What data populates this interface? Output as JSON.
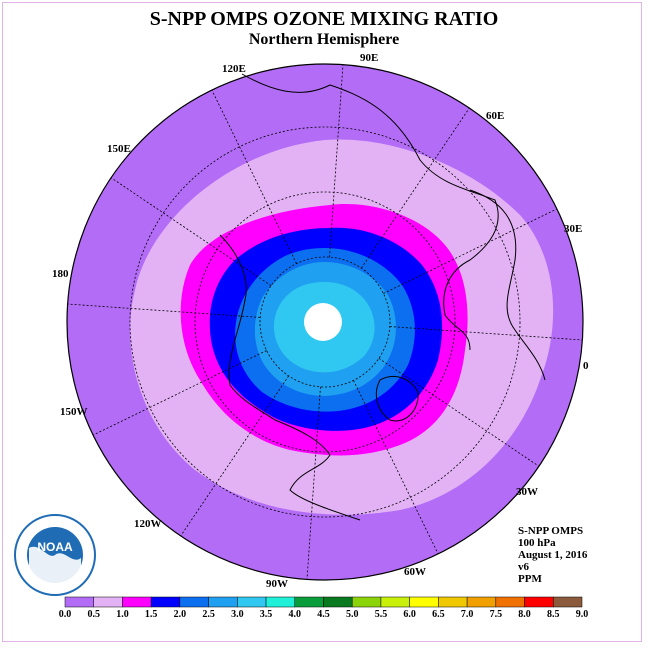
{
  "title": "S-NPP OMPS OZONE MIXING RATIO",
  "subtitle": "Northern Hemisphere",
  "longitude_labels": {
    "lon_90e": "90E",
    "lon_60e": "60E",
    "lon_30e": "30E",
    "lon_0": "0",
    "lon_30w": "30W",
    "lon_60w": "60W",
    "lon_90w": "90W",
    "lon_120w": "120W",
    "lon_150w": "150W",
    "lon_180": "180",
    "lon_150e": "150E",
    "lon_120e": "120E"
  },
  "info": {
    "instrument": "S-NPP OMPS",
    "level": "100 hPa",
    "date": "August 1, 2016",
    "version": "v6",
    "units": "PPM"
  },
  "colorbar": {
    "ticks": [
      "0.0",
      "0.5",
      "1.0",
      "1.5",
      "2.0",
      "2.5",
      "3.0",
      "3.5",
      "4.0",
      "4.5",
      "5.0",
      "5.5",
      "6.0",
      "6.5",
      "7.0",
      "7.5",
      "8.0",
      "8.5",
      "9.0"
    ],
    "colors": [
      "#b36cf5",
      "#e3b2f5",
      "#ff00ff",
      "#0000ff",
      "#0b6ff0",
      "#20a0f0",
      "#30c8f0",
      "#20f0d8",
      "#0a9d3c",
      "#0a7a20",
      "#8cd40a",
      "#c8f00a",
      "#ffff00",
      "#f0c800",
      "#f0a000",
      "#f07000",
      "#ff0000",
      "#8c5a3c"
    ]
  },
  "logo": {
    "text": "NOAA",
    "ring_text": "NATIONAL OCEANIC AND ATMOSPHERIC ADMINISTRATION · U.S. DEPARTMENT OF COMMERCE"
  },
  "field": {
    "max_band_value": "4.0",
    "missing_region": "pole"
  }
}
